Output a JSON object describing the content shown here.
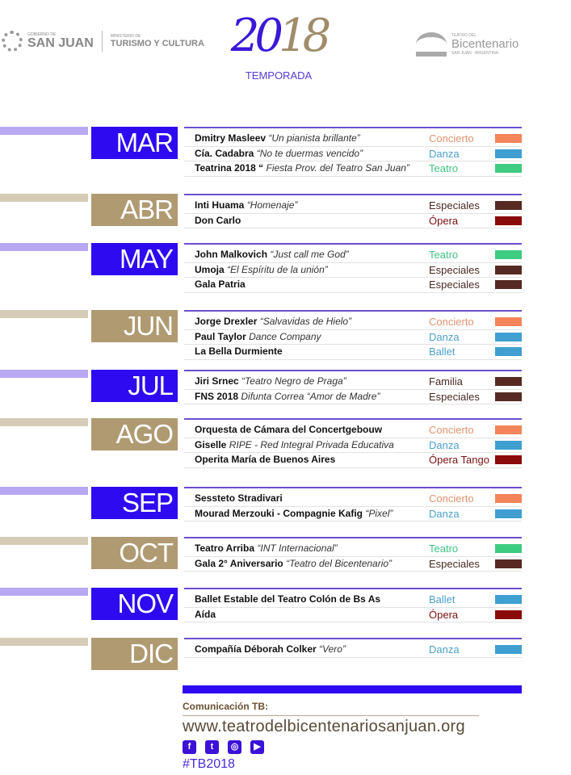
{
  "header": {
    "left_logo": {
      "small": "GOBIERNO DE",
      "big": "SAN JUAN",
      "ministry_small": "MINISTERIO DE",
      "ministry_big": "TURISMO Y CULTURA"
    },
    "center_logo": {
      "year_a": "20",
      "year_b": "18",
      "subtitle": "TEMPORADA"
    },
    "right_logo": {
      "small": "TEATRO DEL",
      "big": "Bicentenario",
      "sub": "SAN JUAN · ARGENTINA"
    }
  },
  "colors": {
    "purple": "#2d0af0",
    "tan": "#b09a72",
    "purple_bar": "#b8a8f2",
    "tan_bar": "#d6cbb7",
    "Concierto": "#f4845a",
    "Danza": "#3e9fd0",
    "Teatro": "#3dcc80",
    "Especiales": "#562a22",
    "Ópera": "#8b0a0a",
    "Ópera Tango": "#8b0a0a",
    "Ballet": "#3e9fd0",
    "Familia": "#562a22"
  },
  "text_colors": {
    "Concierto": "#e0936e",
    "Danza": "#4ca0cc",
    "Teatro": "#3fc483",
    "Especiales": "#4a2a22",
    "Ópera": "#7a1010",
    "Ópera Tango": "#7a1010",
    "Ballet": "#4ca0cc",
    "Familia": "#4a2a22"
  },
  "months": [
    {
      "label": "MAR",
      "theme": "purple",
      "events": [
        {
          "name": "Dmitry Masleev",
          "detail": "“Un pianista brillante”",
          "category": "Concierto"
        },
        {
          "name": "Cía. Cadabra",
          "detail": "“No te duermas vencido”",
          "category": "Danza"
        },
        {
          "name": "Teatrina 2018 “",
          "detail": "Fiesta Prov. del Teatro San Juan”",
          "category": "Teatro"
        }
      ]
    },
    {
      "label": "ABR",
      "theme": "tan",
      "events": [
        {
          "name": "Inti Huama",
          "detail": "“Homenaje”",
          "category": "Especiales"
        },
        {
          "name": "Don Carlo",
          "detail": "",
          "category": "Ópera"
        }
      ]
    },
    {
      "label": "MAY",
      "theme": "purple",
      "events": [
        {
          "name": "John Malkovich",
          "detail": "“Just call me God”",
          "category": "Teatro"
        },
        {
          "name": "Umoja",
          "detail": "“El Espíritu de la unión”",
          "category": "Especiales"
        },
        {
          "name": "Gala Patria",
          "detail": "",
          "category": "Especiales"
        }
      ]
    },
    {
      "label": "JUN",
      "theme": "tan",
      "events": [
        {
          "name": "Jorge Drexler",
          "detail": "“Salvavidas de Hielo”",
          "category": "Concierto"
        },
        {
          "name": "Paul Taylor",
          "detail": "Dance Company",
          "category": "Danza"
        },
        {
          "name": "La Bella Durmiente",
          "detail": "",
          "category": "Ballet"
        }
      ]
    },
    {
      "label": "JUL",
      "theme": "purple",
      "events": [
        {
          "name": "Jiri Srnec",
          "detail": "“Teatro Negro de Praga”",
          "category": "Familia"
        },
        {
          "name": "FNS 2018",
          "detail": "Difunta Correa “Amor de Madre”",
          "category": "Especiales"
        }
      ]
    },
    {
      "label": "AGO",
      "theme": "tan",
      "events": [
        {
          "name": "Orquesta de Cámara del Concertgebouw",
          "detail": "",
          "category": "Concierto"
        },
        {
          "name": "Giselle",
          "detail": "RIPE - Red Integral Privada Educativa",
          "category": "Danza"
        },
        {
          "name": "Operita María de Buenos Aires",
          "detail": "",
          "category": "Ópera Tango"
        }
      ]
    },
    {
      "label": "SEP",
      "theme": "purple",
      "events": [
        {
          "name": "Sessteto Stradivari",
          "detail": "",
          "category": "Concierto"
        },
        {
          "name": "Mourad Merzouki - Compagnie Kafig",
          "detail": "“Pixel”",
          "category": "Danza"
        }
      ]
    },
    {
      "label": "OCT",
      "theme": "tan",
      "events": [
        {
          "name": "Teatro Arriba",
          "detail": "“INT Internacional”",
          "category": "Teatro"
        },
        {
          "name": "Gala 2° Aniversario",
          "detail": "“Teatro del Bicentenario”",
          "category": "Especiales"
        }
      ]
    },
    {
      "label": "NOV",
      "theme": "purple",
      "events": [
        {
          "name": "Ballet Estable del Teatro Colón de Bs As",
          "detail": "",
          "category": "Ballet"
        },
        {
          "name": "Aída",
          "detail": "",
          "category": "Ópera"
        }
      ]
    },
    {
      "label": "DIC",
      "theme": "tan",
      "events": [
        {
          "name": "Compañía Déborah Colker",
          "detail": "“Vero”",
          "category": "Danza"
        }
      ]
    }
  ],
  "footer": {
    "contact_label": "Comunicación TB:",
    "url": "www.teatrodelbicentenariosanjuan.org",
    "social": [
      {
        "icon": "facebook-icon",
        "glyph": "f"
      },
      {
        "icon": "twitter-icon",
        "glyph": "t"
      },
      {
        "icon": "instagram-icon",
        "glyph": "◎"
      },
      {
        "icon": "youtube-icon",
        "glyph": "▶"
      }
    ],
    "hashtag": "#TB2018"
  }
}
